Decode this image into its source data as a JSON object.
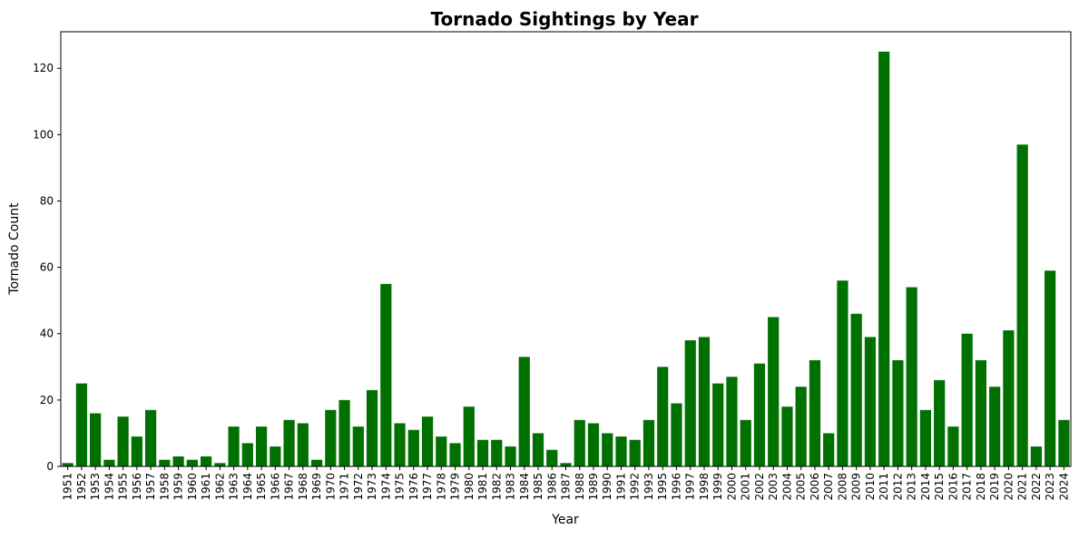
{
  "chart_data": {
    "type": "bar",
    "title": "Tornado Sightings by Year",
    "xlabel": "Year",
    "ylabel": "Tornado Count",
    "ylim": [
      0,
      131
    ],
    "yticks": [
      0,
      20,
      40,
      60,
      80,
      100,
      120
    ],
    "grid": false,
    "bar_color": "#007000",
    "categories": [
      "1951",
      "1952",
      "1953",
      "1954",
      "1955",
      "1956",
      "1957",
      "1958",
      "1959",
      "1960",
      "1961",
      "1962",
      "1963",
      "1964",
      "1965",
      "1966",
      "1967",
      "1968",
      "1969",
      "1970",
      "1971",
      "1972",
      "1973",
      "1974",
      "1975",
      "1976",
      "1977",
      "1978",
      "1979",
      "1980",
      "1981",
      "1982",
      "1983",
      "1984",
      "1985",
      "1986",
      "1987",
      "1988",
      "1989",
      "1990",
      "1991",
      "1992",
      "1993",
      "1995",
      "1996",
      "1997",
      "1998",
      "1999",
      "2000",
      "2001",
      "2002",
      "2003",
      "2004",
      "2005",
      "2006",
      "2007",
      "2008",
      "2009",
      "2010",
      "2011",
      "2012",
      "2013",
      "2014",
      "2015",
      "2016",
      "2017",
      "2018",
      "2019",
      "2020",
      "2021",
      "2022",
      "2023",
      "2024"
    ],
    "values": [
      1,
      25,
      16,
      2,
      15,
      9,
      17,
      2,
      3,
      2,
      3,
      1,
      12,
      7,
      12,
      6,
      14,
      13,
      2,
      17,
      20,
      12,
      23,
      55,
      13,
      11,
      15,
      9,
      7,
      18,
      8,
      8,
      6,
      33,
      10,
      5,
      1,
      14,
      13,
      10,
      9,
      8,
      14,
      30,
      19,
      38,
      39,
      25,
      27,
      14,
      31,
      45,
      18,
      24,
      32,
      10,
      56,
      46,
      39,
      125,
      32,
      54,
      17,
      26,
      12,
      40,
      32,
      24,
      41,
      97,
      6,
      59,
      14
    ]
  }
}
